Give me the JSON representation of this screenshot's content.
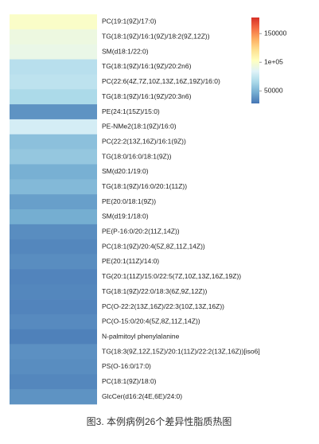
{
  "chart_data": {
    "type": "heatmap",
    "title": "图3. 本例病例26个差异性脂质热图",
    "categories": [
      "PC(19:1(9Z)/17:0)",
      "TG(18:1(9Z)/16:1(9Z)/18:2(9Z,12Z))",
      "SM(d18:1/22:0)",
      "TG(18:1(9Z)/16:1(9Z)/20:2n6)",
      "PC(22:6(4Z,7Z,10Z,13Z,16Z,19Z)/16:0)",
      "TG(18:1(9Z)/16:1(9Z)/20:3n6)",
      "PE(24:1(15Z)/15:0)",
      "PE-NMe2(18:1(9Z)/16:0)",
      "PC(22:2(13Z,16Z)/16:1(9Z))",
      "TG(18:0/16:0/18:1(9Z))",
      "SM(d20:1/19:0)",
      "TG(18:1(9Z)/16:0/20:1(11Z))",
      "PE(20:0/18:1(9Z))",
      "SM(d19:1/18:0)",
      "PE(P-16:0/20:2(11Z,14Z))",
      "PC(18:1(9Z)/20:4(5Z,8Z,11Z,14Z))",
      "PE(20:1(11Z)/14:0)",
      "TG(20:1(11Z)/15:0/22:5(7Z,10Z,13Z,16Z,19Z))",
      "TG(18:1(9Z)/22:0/18:3(6Z,9Z,12Z))",
      "PC(O-22:2(13Z,16Z)/22:3(10Z,13Z,16Z))",
      "PC(O-15:0/20:4(5Z,8Z,11Z,14Z))",
      "N-palmitoyl phenylalanine",
      "TG(18:3(9Z,12Z,15Z)/20:1(11Z)/22:2(13Z,16Z))[iso6]",
      "PS(O-16:0/17:0)",
      "PC(18:1(9Z)/18:0)",
      "GlcCer(d16:2(4E,6E)/24:0)"
    ],
    "values": [
      100000,
      92000,
      90000,
      70000,
      72000,
      66000,
      38000,
      80000,
      55000,
      58000,
      48000,
      52000,
      42000,
      47000,
      36000,
      34000,
      36000,
      33000,
      34000,
      33000,
      35000,
      32000,
      37000,
      36000,
      34000,
      38000
    ],
    "zlim": [
      28000,
      178000
    ],
    "zticks": [
      150000,
      {
        "value": 100000,
        "label": "1e+05"
      },
      50000
    ],
    "colormap": [
      "#4575b4",
      "#74add1",
      "#abd9e9",
      "#e0f3f8",
      "#ffffbf",
      "#fee090",
      "#fdae61",
      "#f46d43",
      "#d73027"
    ]
  }
}
